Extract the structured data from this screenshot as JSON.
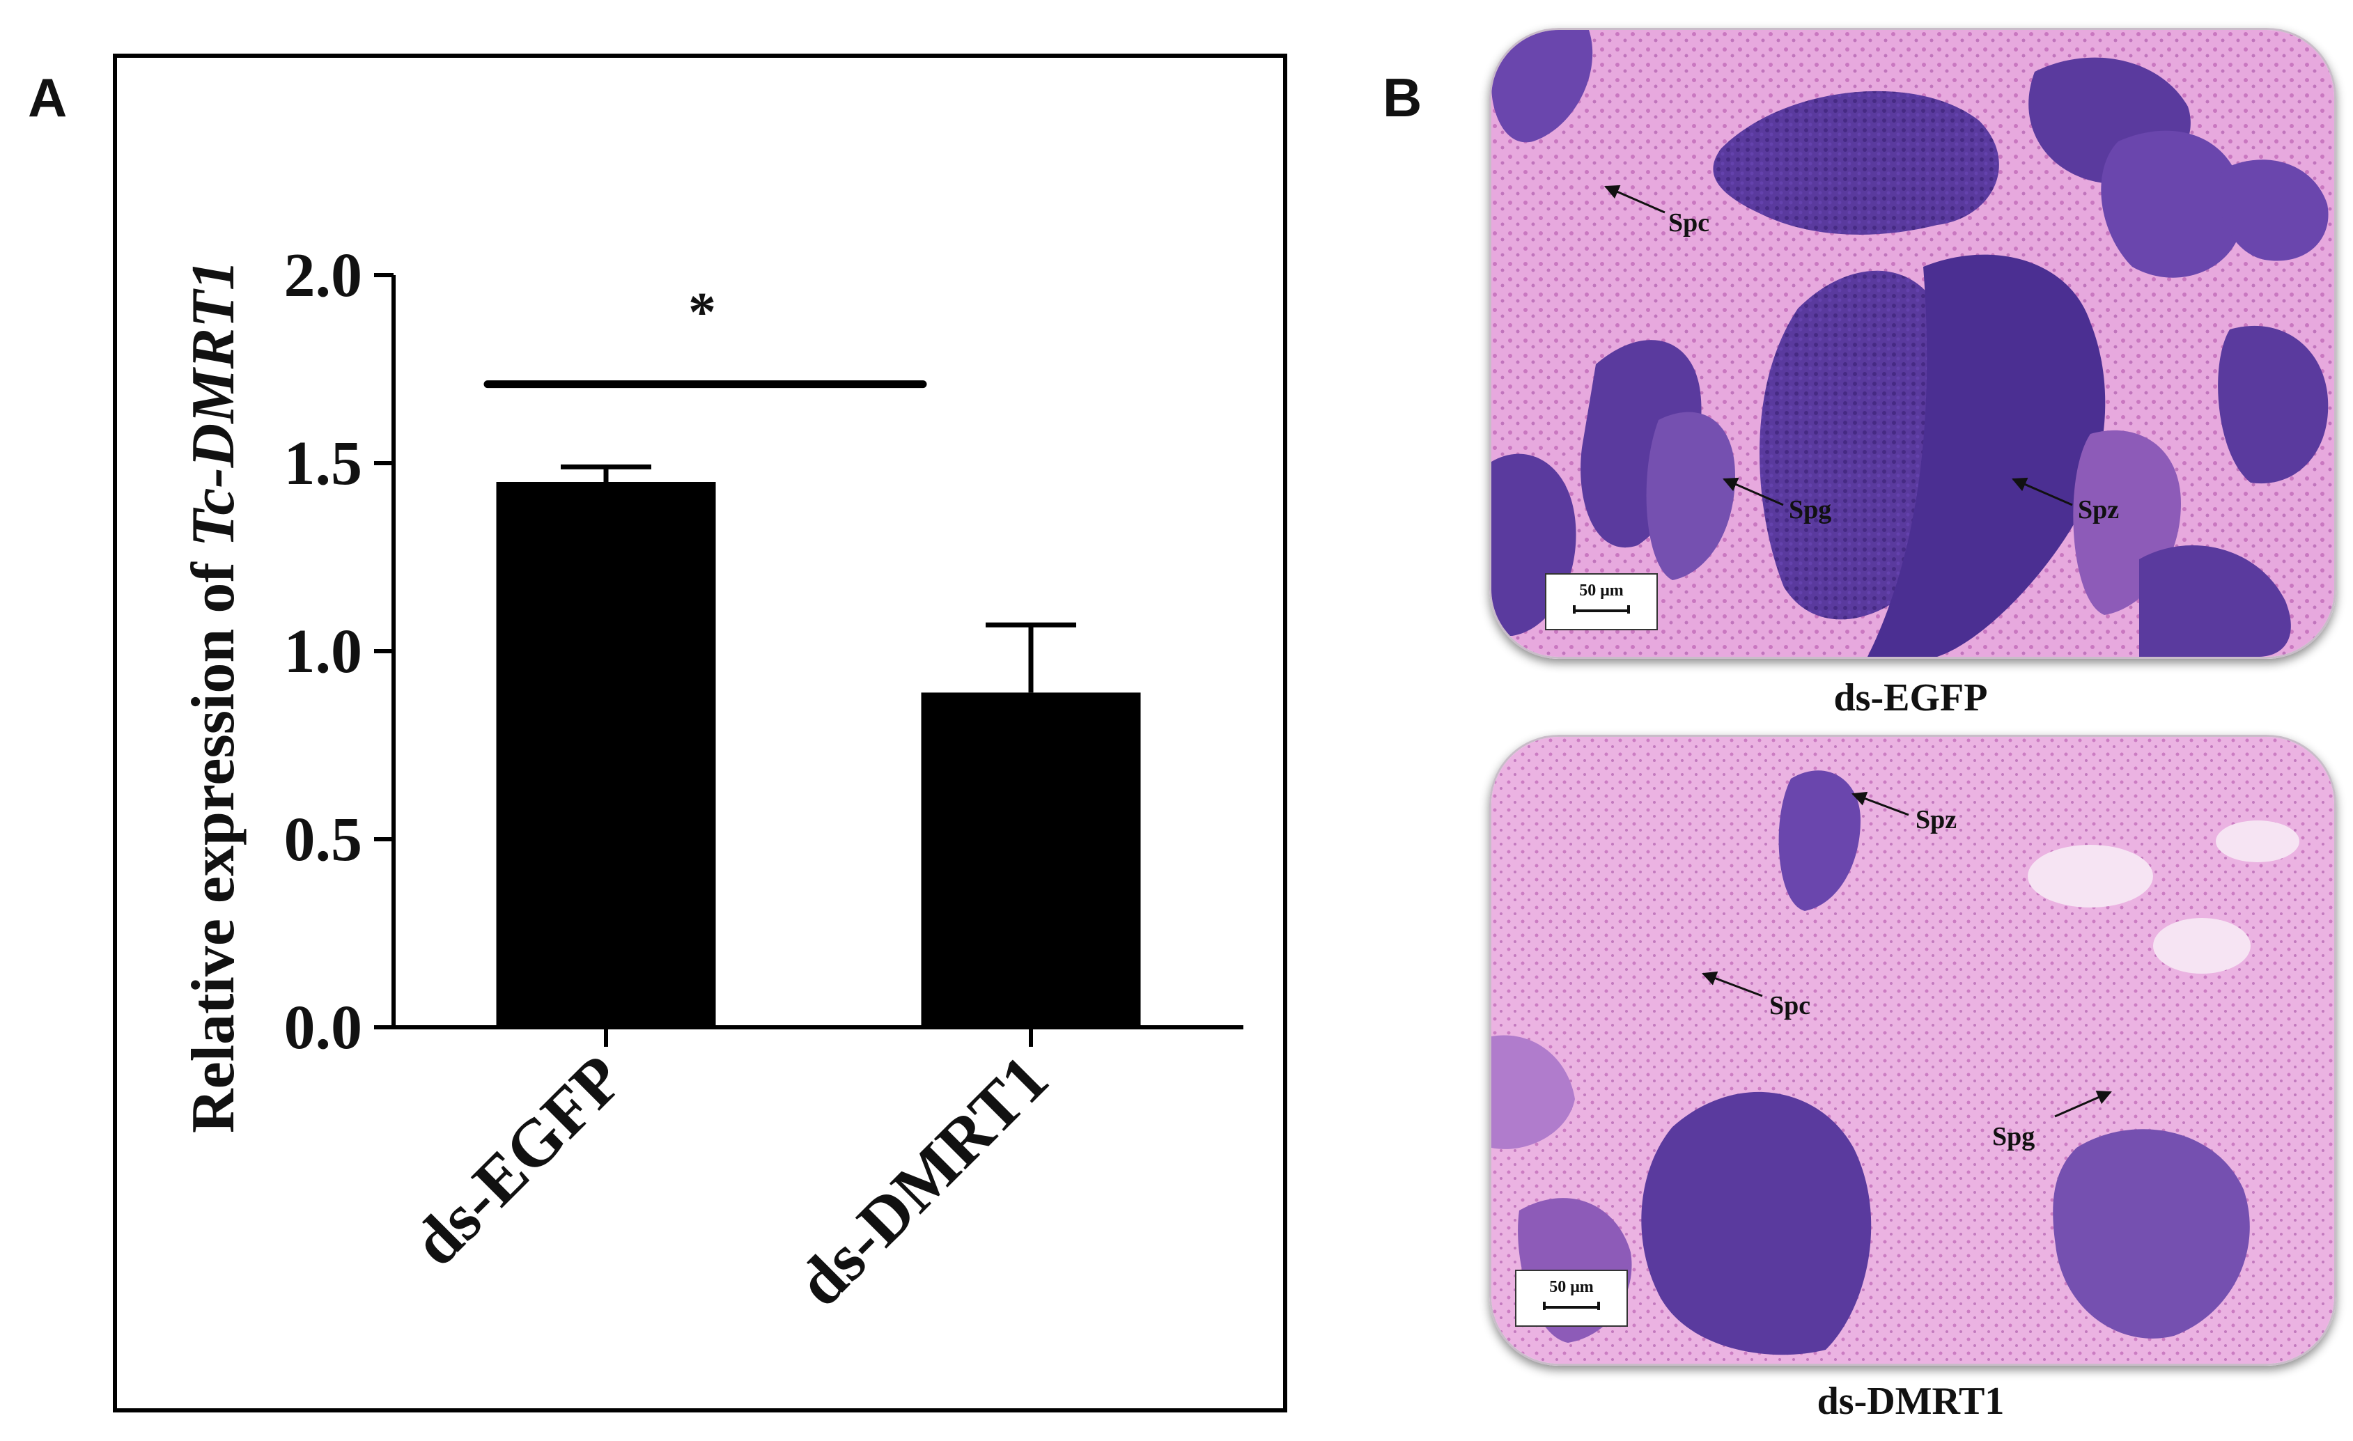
{
  "panels": {
    "a": "A",
    "b": "B"
  },
  "chart_data": {
    "type": "bar",
    "categories": [
      "ds-EGFP",
      "ds-DMRT1"
    ],
    "values": [
      1.45,
      0.89
    ],
    "error": [
      0.04,
      0.18
    ],
    "ylabel_prefix": "Relative expression of ",
    "ylabel_gene": "Tc-DMRT1",
    "xlabel": "",
    "ylim": [
      0,
      2.0
    ],
    "yticks": [
      "0.0",
      "0.5",
      "1.0",
      "1.5",
      "2.0"
    ],
    "significance": "*",
    "bar_color": "#000000",
    "grid": false
  },
  "micrographs": [
    {
      "caption": "ds-EGFP",
      "scale_label": "50 μm",
      "labels": [
        "Spc",
        "Spg",
        "Spz"
      ]
    },
    {
      "caption": "ds-DMRT1",
      "scale_label": "50 μm",
      "labels": [
        "Spz",
        "Spc",
        "Spg"
      ]
    }
  ],
  "colors": {
    "stain_light": "#e7a9de",
    "stain_dark": "#5a3a9e",
    "stain_mid": "#8d5bb8"
  }
}
